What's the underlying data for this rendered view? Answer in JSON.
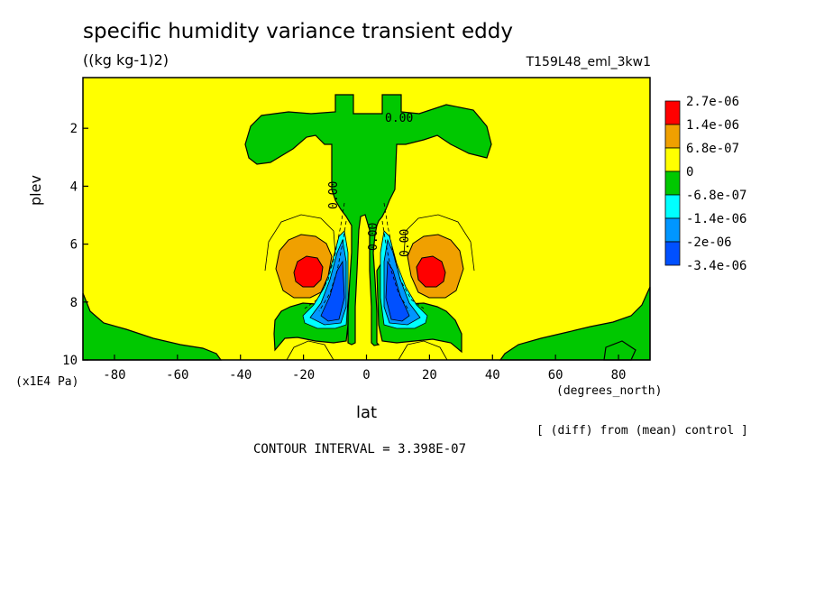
{
  "chart_data": {
    "type": "heatmap",
    "title": "specific humidity variance transient eddy",
    "units": "((kg kg-1)2)",
    "run_label": "T159L48_eml_3kw1",
    "xlabel": "lat",
    "xunit": "(degrees_north)",
    "ylabel": "plev",
    "yunit": "(x1E4 Pa)",
    "xlim": [
      -90,
      90
    ],
    "ylim": [
      10,
      0.25
    ],
    "xticks": [
      "-80",
      "-60",
      "-40",
      "-20",
      "0",
      "20",
      "40",
      "60",
      "80"
    ],
    "yticks": [
      "2",
      "4",
      "6",
      "8",
      "10"
    ],
    "note": "[ (diff) from (mean) control ]",
    "contour_interval": "CONTOUR INTERVAL = 3.398E-07",
    "contour_labels": [
      "0.00",
      "0.00",
      "0.00",
      "0.00"
    ],
    "colorbar": {
      "labels": [
        "2.7e-06",
        "1.4e-06",
        "6.8e-07",
        "0",
        "-6.8e-07",
        "-1.4e-06",
        "-2e-06",
        "-3.4e-06"
      ],
      "colors": [
        "#ff0000",
        "#ff0000",
        "#f0a000",
        "#ffff00",
        "#00c800",
        "#00ffff",
        "#0096ff",
        "#0050ff"
      ]
    },
    "background_color": "#ffff00"
  }
}
